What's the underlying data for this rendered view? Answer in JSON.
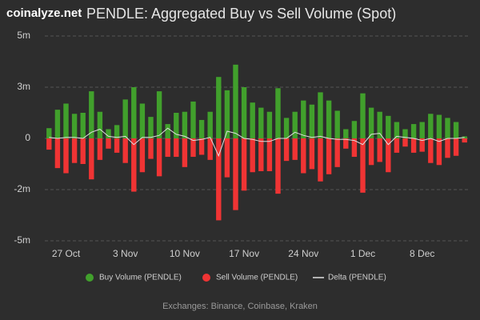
{
  "chart_data": {
    "type": "bar",
    "brand": "coinalyze.net",
    "title": "PENDLE: Aggregated Buy vs Sell Volume (Spot)",
    "footer": "Exchanges: Binance, Coinbase, Kraken",
    "categories": [
      null,
      null,
      "27 Oct",
      null,
      null,
      null,
      null,
      null,
      null,
      "3 Nov",
      null,
      null,
      null,
      null,
      null,
      null,
      "10 Nov",
      null,
      null,
      null,
      null,
      null,
      null,
      "17 Nov",
      null,
      null,
      null,
      null,
      null,
      null,
      "24 Nov",
      null,
      null,
      null,
      null,
      null,
      null,
      "1 Dec",
      null,
      null,
      null,
      null,
      null,
      null,
      "8 Dec",
      null,
      null,
      null,
      null,
      null
    ],
    "series": [
      {
        "name": "Buy Volume (PENDLE)",
        "color": "#41a02c",
        "values": [
          0.5,
          1.4,
          1.7,
          1.2,
          1.25,
          2.3,
          1.3,
          0.45,
          0.65,
          1.9,
          2.5,
          1.7,
          1.05,
          2.3,
          0.7,
          1.25,
          1.3,
          1.8,
          0.9,
          1.3,
          3.0,
          2.35,
          3.6,
          2.5,
          1.75,
          1.5,
          1.3,
          2.45,
          1.0,
          1.3,
          1.85,
          1.65,
          2.25,
          1.85,
          1.35,
          0.45,
          0.85,
          2.2,
          1.5,
          1.3,
          1.1,
          0.8,
          0.45,
          0.7,
          0.8,
          1.2,
          1.15,
          1.0,
          0.8,
          0.1
        ]
      },
      {
        "name": "Sell Volume (PENDLE)",
        "color": "#f03434",
        "values": [
          -0.55,
          -1.45,
          -1.7,
          -1.2,
          -1.25,
          -2.0,
          -1.05,
          -0.5,
          -0.7,
          -1.2,
          -2.6,
          -1.65,
          -1.0,
          -1.85,
          -0.9,
          -0.9,
          -1.4,
          -0.9,
          -0.8,
          -1.05,
          -4.0,
          -1.9,
          -3.5,
          -2.55,
          -1.65,
          -1.6,
          -1.6,
          -2.7,
          -1.1,
          -1.05,
          -1.7,
          -1.5,
          -2.1,
          -1.75,
          -1.4,
          -0.5,
          -0.9,
          -2.65,
          -1.3,
          -1.15,
          -1.65,
          -0.7,
          -0.4,
          -0.7,
          -0.65,
          -1.2,
          -1.3,
          -0.95,
          -0.85,
          -0.2
        ]
      },
      {
        "name": "Delta (PENDLE)",
        "color": "#e0e0e0",
        "kind": "line",
        "values": [
          0.05,
          0,
          0.05,
          0.05,
          0,
          0.3,
          0.45,
          0.1,
          0.05,
          0.1,
          -0.3,
          0.05,
          0.05,
          0.15,
          0.5,
          0.2,
          0.1,
          -0.1,
          -0.05,
          0.05,
          -0.85,
          0.35,
          0.25,
          0,
          -0.05,
          -0.15,
          -0.15,
          0,
          0,
          0.3,
          0.15,
          0.05,
          0.1,
          0,
          -0.05,
          -0.05,
          -0.1,
          -0.3,
          0.2,
          0.25,
          -0.3,
          0.1,
          0.05,
          0,
          -0.1,
          0,
          -0.15,
          0,
          0,
          0.05
        ]
      }
    ],
    "ylim": [
      -5,
      5
    ],
    "yticks": [
      {
        "value": 5,
        "label": "5m"
      },
      {
        "value": 2.5,
        "label": "3m"
      },
      0,
      {
        "value": -2.5,
        "label": "-2m"
      },
      {
        "value": -5,
        "label": "-5m"
      }
    ],
    "grid": true
  }
}
